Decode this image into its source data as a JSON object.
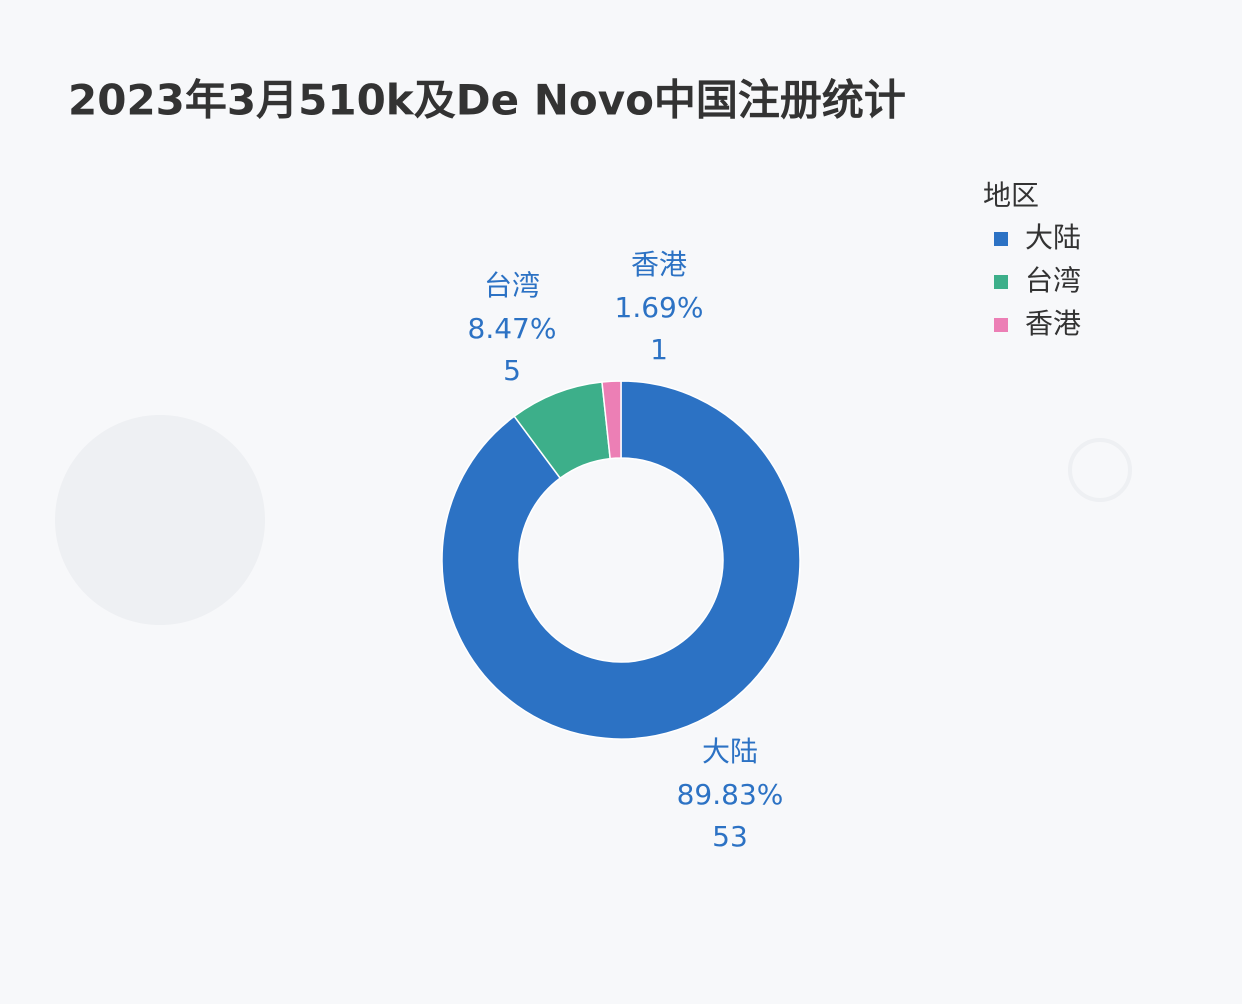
{
  "chart_data": {
    "type": "donut",
    "title": "2023年3月510k及De Novo中国注册统计",
    "legend_title": "地区",
    "categories": [
      "大陆",
      "台湾",
      "香港"
    ],
    "values": [
      53,
      5,
      1
    ],
    "percent_values": [
      89.83,
      8.47,
      1.69
    ],
    "percent_labels": [
      "89.83%",
      "8.47%",
      "1.69%"
    ],
    "colors": [
      "#2c72c4",
      "#3daf8a",
      "#ec7fb5"
    ],
    "legend_position": "top-right"
  }
}
